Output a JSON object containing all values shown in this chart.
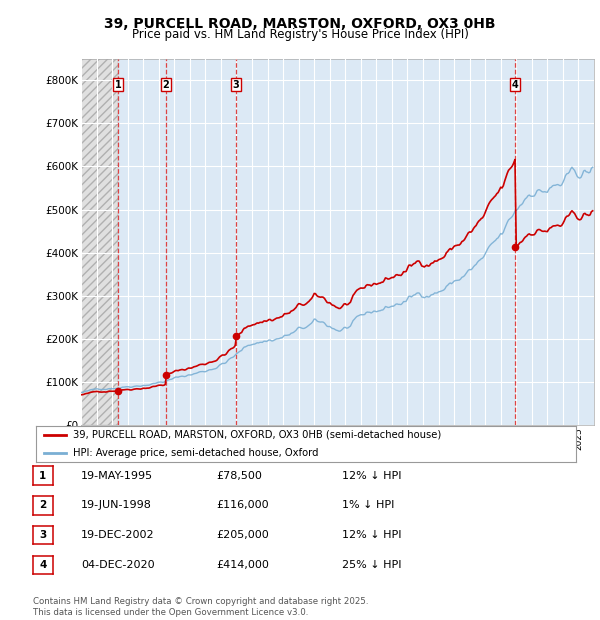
{
  "title": "39, PURCELL ROAD, MARSTON, OXFORD, OX3 0HB",
  "subtitle": "Price paid vs. HM Land Registry's House Price Index (HPI)",
  "ylabel_ticks": [
    "£0",
    "£100K",
    "£200K",
    "£300K",
    "£400K",
    "£500K",
    "£600K",
    "£700K",
    "£800K"
  ],
  "ylim": [
    0,
    850000
  ],
  "xlim_start": 1993.0,
  "xlim_end": 2026.0,
  "sale_dates": [
    1995.38,
    1998.46,
    2002.97,
    2020.92
  ],
  "sale_prices": [
    78500,
    116000,
    205000,
    414000
  ],
  "sale_labels": [
    "1",
    "2",
    "3",
    "4"
  ],
  "legend_entries": [
    {
      "label": "39, PURCELL ROAD, MARSTON, OXFORD, OX3 0HB (semi-detached house)",
      "color": "#cc0000"
    },
    {
      "label": "HPI: Average price, semi-detached house, Oxford",
      "color": "#7aafd4"
    }
  ],
  "table_rows": [
    {
      "num": "1",
      "date": "19-MAY-1995",
      "price": "£78,500",
      "hpi": "12% ↓ HPI"
    },
    {
      "num": "2",
      "date": "19-JUN-1998",
      "price": "£116,000",
      "hpi": "1% ↓ HPI"
    },
    {
      "num": "3",
      "date": "19-DEC-2002",
      "price": "£205,000",
      "hpi": "12% ↓ HPI"
    },
    {
      "num": "4",
      "date": "04-DEC-2020",
      "price": "£414,000",
      "hpi": "25% ↓ HPI"
    }
  ],
  "footer": "Contains HM Land Registry data © Crown copyright and database right 2025.\nThis data is licensed under the Open Government Licence v3.0.",
  "plot_bg": "#dce9f5",
  "hatch_bg": "#e0e0e0",
  "grid_color": "#ffffff",
  "price_line_color": "#cc0000",
  "hpi_line_color": "#7aafd4"
}
